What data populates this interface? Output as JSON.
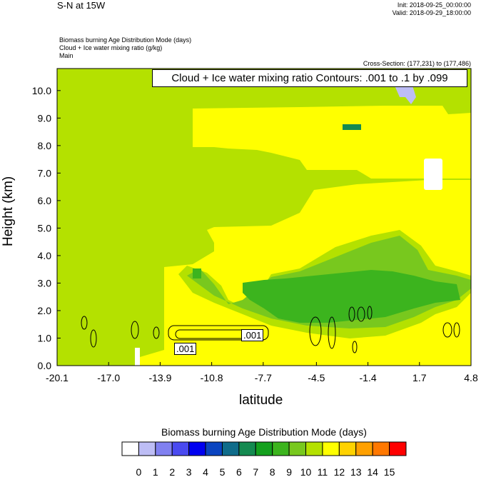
{
  "header": {
    "plot_title": "S-N at 15W",
    "init": "Init: 2018-09-25_00:00:00",
    "valid": "Valid: 2018-09-29_18:00:00",
    "field1": "Biomass burning Age Distribution Mode   (days)",
    "field2": "Cloud + Ice water mixing ratio   (g/kg)",
    "field3": "Main",
    "cross_section": "Cross-Section: (177,231) to (177,486)",
    "contour_info": "Cloud + Ice water mixing ratio Contours: .001 to .1 by .099"
  },
  "chart_data": {
    "type": "heatmap",
    "xlabel": "latitude",
    "ylabel": "Height (km)",
    "x_ticks": [
      "-20.1",
      "-17.0",
      "-13.9",
      "-10.8",
      "-7.7",
      "-4.5",
      "-1.4",
      "1.7",
      "4.8"
    ],
    "y_ticks": [
      "0.0",
      "1.0",
      "2.0",
      "3.0",
      "4.0",
      "5.0",
      "6.0",
      "7.0",
      "8.0",
      "9.0",
      "10.0"
    ],
    "xlim": [
      -20.1,
      4.8
    ],
    "ylim": [
      0,
      10.8
    ],
    "colorbar": {
      "title": "Biomass burning Age Distribution Mode  (days)",
      "labels": [
        "0",
        "1",
        "2",
        "3",
        "4",
        "5",
        "6",
        "7",
        "8",
        "9",
        "10",
        "11",
        "12",
        "13",
        "14",
        "15"
      ],
      "colors": [
        "#ffffff",
        "#bdbdf5",
        "#8080f0",
        "#4a4af0",
        "#0000f0",
        "#0a44c0",
        "#0f6c8a",
        "#148a50",
        "#14a01e",
        "#3cb41e",
        "#78c81e",
        "#b4e100",
        "#ffff00",
        "#ffd200",
        "#ffa000",
        "#ff7800",
        "#ff0000"
      ]
    },
    "background_class": 11,
    "regions": [
      {
        "class": 12,
        "note": "yellow upper-right, 8.5-10 km from -11 to 4.8"
      },
      {
        "class": 12,
        "note": "yellow middle, 0.3-5.5 km from -11 to 4.8"
      },
      {
        "class": 11,
        "note": "light green band 2.0-3.5 km from -10 to 4.8"
      },
      {
        "class": 9,
        "note": "green core 2.0-3.0 km from -8 to 3"
      },
      {
        "class": 1,
        "note": "lavender patch near 10.0 km at 0.5"
      },
      {
        "class": 0,
        "note": "white patch 6.3-7.3 km at 2.7"
      }
    ],
    "contour_labels": [
      ".001",
      ".001"
    ]
  }
}
